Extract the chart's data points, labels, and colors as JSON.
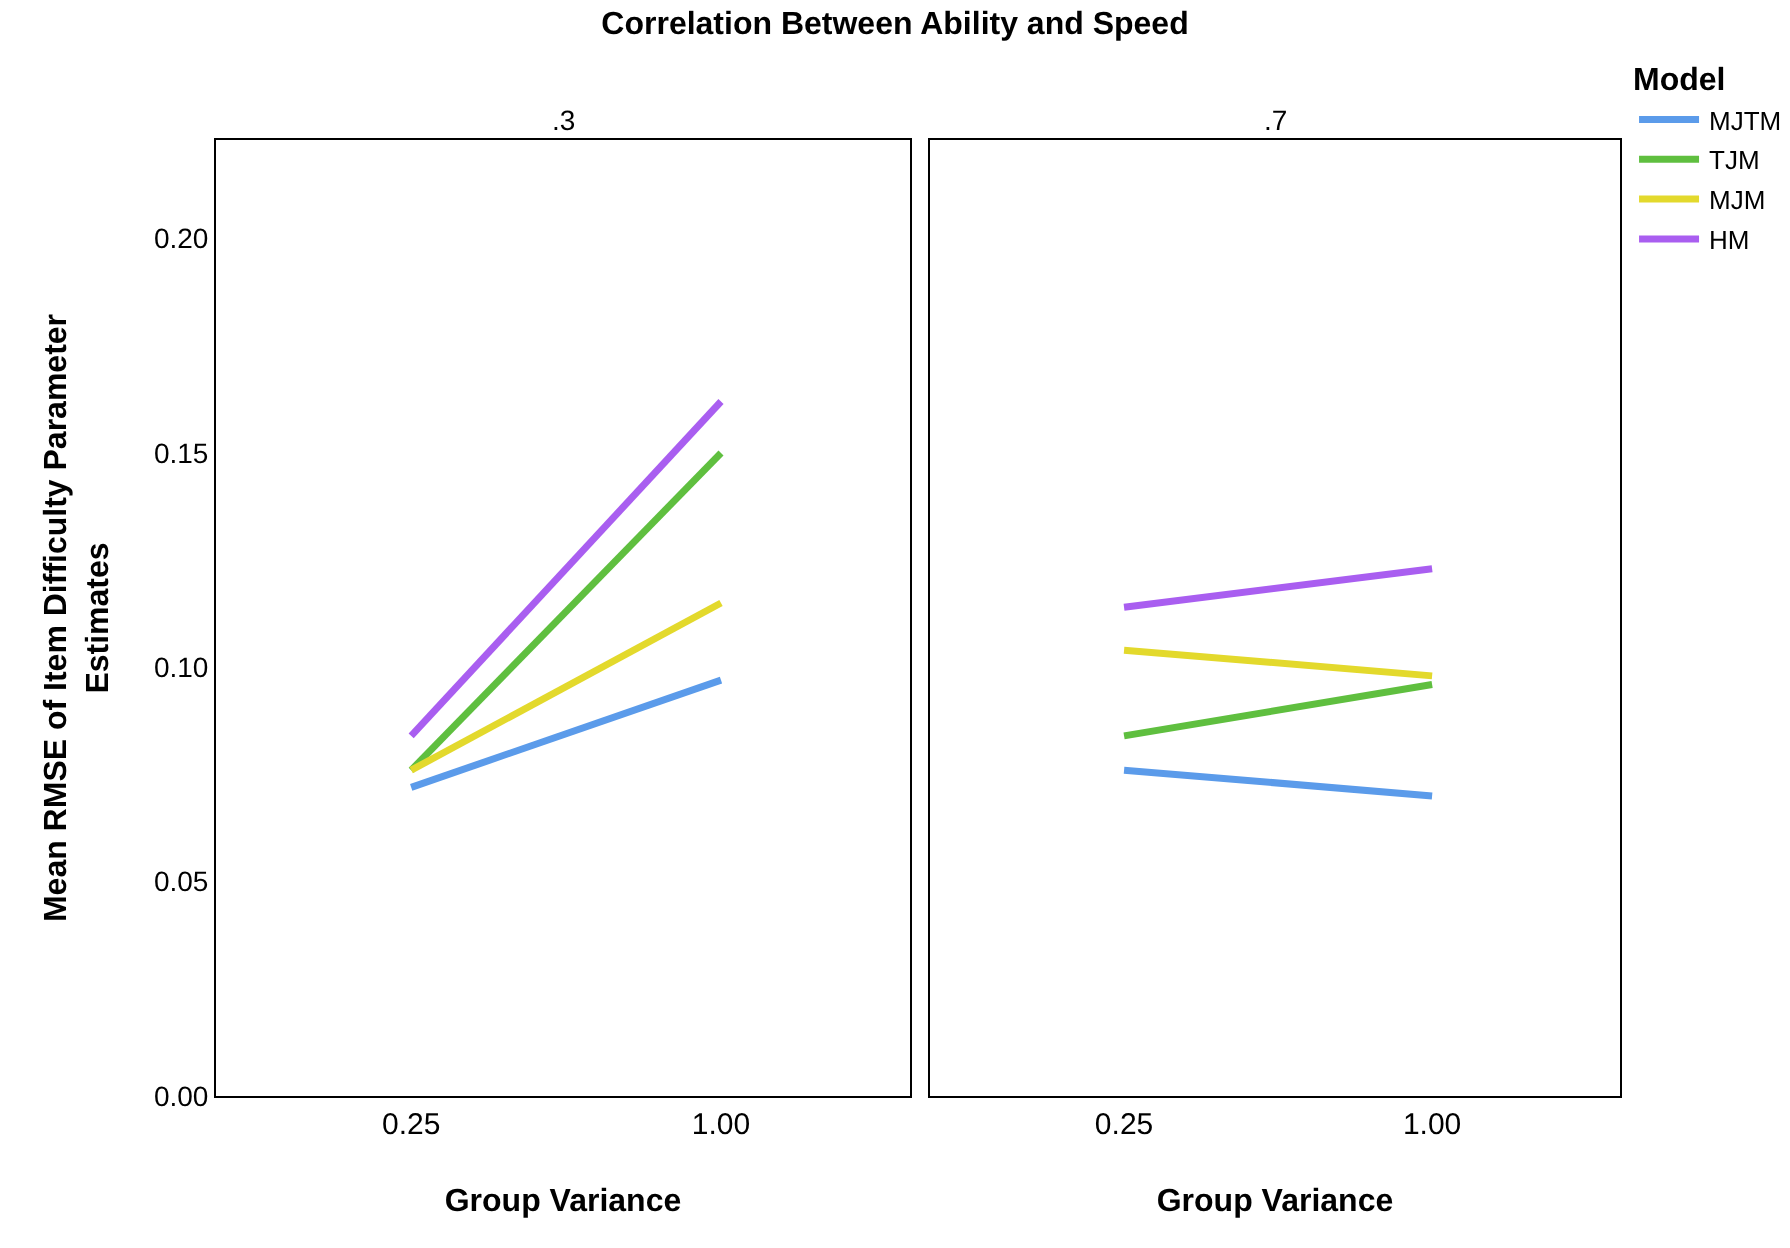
{
  "chart_data": [
    {
      "type": "line",
      "title": "Correlation Between Ability and Speed",
      "subtitle": ".3",
      "xlabel": "Group Variance",
      "ylabel": "Mean RMSE of Item Difficulty Parameter\nEstimates",
      "categories": [
        "0.25",
        "1.00"
      ],
      "ylim": [
        0,
        0.223
      ],
      "yticks": [
        {
          "value": 0,
          "label": "0.00"
        },
        {
          "value": 0.05,
          "label": "0.05"
        },
        {
          "value": 0.1,
          "label": "0.10"
        },
        {
          "value": 0.15,
          "label": "0.15"
        },
        {
          "value": 0.2,
          "label": "0.20"
        }
      ],
      "grid": false,
      "legend": false,
      "marker": "none",
      "series": [
        {
          "color": "#5b9bea",
          "values": [
            0.072,
            0.097
          ]
        },
        {
          "color": "#5fbf3f",
          "values": [
            0.076,
            0.15
          ]
        },
        {
          "color": "#e3d92c",
          "values": [
            0.076,
            0.115
          ]
        },
        {
          "color": "#a95ef0",
          "values": [
            0.084,
            0.162
          ]
        }
      ]
    },
    {
      "type": "line",
      "subtitle": ".7",
      "xlabel": "Group Variance",
      "legend_title": "Model",
      "categories": [
        "0.25",
        "1.00"
      ],
      "ylim": [
        0,
        0.223
      ],
      "yticks": [
        {
          "value": 0,
          "label": null
        },
        {
          "value": 0.05,
          "label": null
        },
        {
          "value": 0.1,
          "label": null
        },
        {
          "value": 0.15,
          "label": null
        },
        {
          "value": 0.2,
          "label": null
        }
      ],
      "tick_labels": "x",
      "grid": false,
      "legend": "top right",
      "marker": "none",
      "series": [
        {
          "name": "MJTM",
          "color": "#5b9bea",
          "values": [
            0.076,
            0.07
          ]
        },
        {
          "name": "TJM",
          "color": "#5fbf3f",
          "values": [
            0.084,
            0.096
          ]
        },
        {
          "name": "MJM",
          "color": "#e3d92c",
          "values": [
            0.104,
            0.098
          ]
        },
        {
          "name": "HM",
          "color": "#a95ef0",
          "values": [
            0.114,
            0.123
          ]
        }
      ]
    }
  ]
}
